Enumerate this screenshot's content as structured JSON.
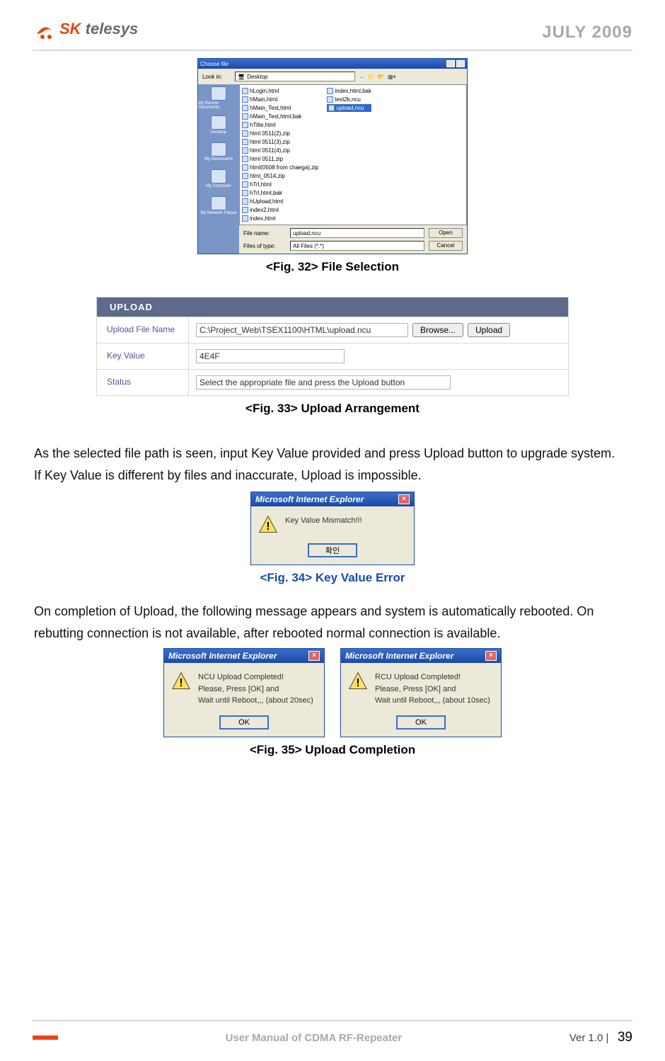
{
  "header": {
    "logo_sk": "SK",
    "logo_tel": " telesys",
    "date": "JULY 2009"
  },
  "fileDialog": {
    "title": "Choose file",
    "lookIn_lbl": "Look in:",
    "lookIn_val": "Desktop",
    "col1": [
      "hLogin,html",
      "hMain,html",
      "hMain_Test,html",
      "hMain_Test,html,bak",
      "hTitle,html",
      "html 0511(2),zip",
      "html 0511(3),zip",
      "html 0511(4),zip",
      "html 0511,zip",
      "html(0508 from chaega),zip",
      "html_0514,zip",
      "hTrl,html",
      "hTrl,html,bak",
      "hUpload,html",
      "index2,html",
      "index,html"
    ],
    "col2": [
      "index,html,bak",
      "test2k,ncu",
      "upload,ncu"
    ],
    "side": [
      "My Recent Documents",
      "Desktop",
      "My Documents",
      "My Computer",
      "My Network Places"
    ],
    "fileName_lbl": "File name:",
    "fileName_val": "upload,ncu",
    "fileType_lbl": "Files of type:",
    "fileType_val": "All Files (*.*)",
    "open": "Open",
    "cancel": "Cancel"
  },
  "captions": {
    "c32": "<Fig. 32> File Selection",
    "c33": "<Fig. 33> Upload Arrangement",
    "c34": "<Fig. 34> Key Value Error",
    "c35": "<Fig. 35> Upload Completion"
  },
  "upload": {
    "head": "UPLOAD",
    "r1_lbl": "Upload File Name",
    "r1_val": "C:\\Project_Web\\TSEX1100\\HTML\\upload.ncu",
    "r1_browse": "Browse...",
    "r1_upload": "Upload",
    "r2_lbl": "Key Value",
    "r2_val": "4E4F",
    "r3_lbl": "Status",
    "r3_val": "Select the appropriate file and press the Upload button"
  },
  "para1": "As the selected file path is seen, input Key Value provided and press Upload button to upgrade system.",
  "para2": "If Key Value is different by files and inaccurate, Upload is impossible.",
  "para3": "On completion of Upload, the following message appears and system is automatically rebooted. On rebutting connection is not available, after rebooted normal connection is available.",
  "alert34": {
    "title": "Microsoft Internet Explorer",
    "msg": "Key Value Mismatch!!!",
    "ok": "확인"
  },
  "alert35a": {
    "title": "Microsoft Internet Explorer",
    "l1": "NCU Upload Completed!",
    "l2": "Please, Press [OK] and",
    "l3": "Wait until Reboot,,, (about 20sec)",
    "ok": "OK"
  },
  "alert35b": {
    "title": "Microsoft Internet Explorer",
    "l1": "RCU Upload Completed!",
    "l2": "Please, Press [OK] and",
    "l3": "Wait until Reboot,,, (about 10sec)",
    "ok": "OK"
  },
  "footer": {
    "title": "User Manual of CDMA RF-Repeater",
    "ver": "Ver 1.0 |",
    "page": "39"
  }
}
